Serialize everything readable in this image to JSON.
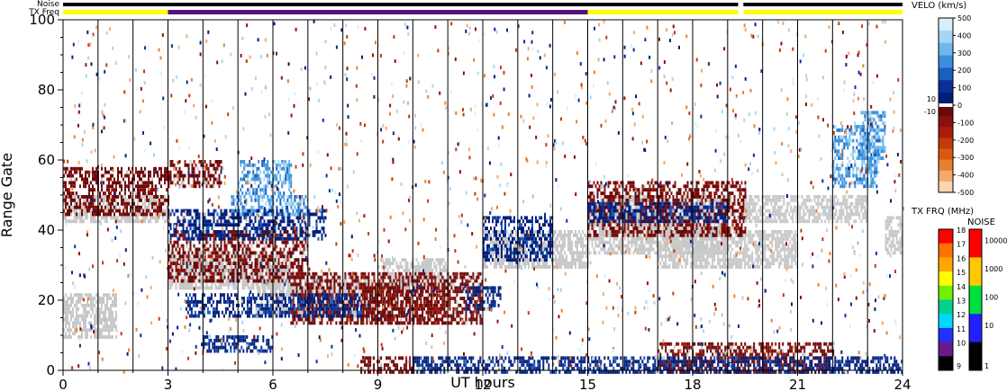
{
  "chart_data": {
    "type": "heatmap",
    "xlabel": "UT hours",
    "ylabel": "Range Gate",
    "xlim": [
      0,
      24
    ],
    "ylim": [
      0,
      100
    ],
    "x_ticks": [
      "0",
      "3",
      "6",
      "9",
      "12",
      "15",
      "18",
      "21",
      "24"
    ],
    "y_ticks": [
      "0",
      "20",
      "40",
      "60",
      "80",
      "100"
    ],
    "grid": "vertical lines every 1 hour",
    "top_bars": {
      "noise_label": "Noise",
      "txfreq_label": "TX Freq",
      "noise_segments": [
        {
          "start": 0,
          "end": 19.3,
          "color": "#000000"
        },
        {
          "start": 19.45,
          "end": 24,
          "color": "#000000"
        }
      ],
      "txfreq_segments": [
        {
          "start": 0,
          "end": 3,
          "color": "#ffff00"
        },
        {
          "start": 3,
          "end": 15,
          "color": "#5a1278"
        },
        {
          "start": 15,
          "end": 19.3,
          "color": "#ffff00"
        },
        {
          "start": 19.45,
          "end": 24,
          "color": "#ffff00"
        }
      ]
    },
    "velocity_colorbar": {
      "title": "VELO (km/s)",
      "ticks": [
        "500",
        "400",
        "300",
        "200",
        "100",
        "0",
        "-100",
        "-200",
        "-300",
        "-400",
        "-500"
      ],
      "small_ticks": [
        "10",
        "-10"
      ],
      "colors_positive": [
        "#d8eefc",
        "#a6d6f4",
        "#6eb8ec",
        "#3a8fdc",
        "#1a5fc0",
        "#0b2f98",
        "#041e78"
      ],
      "colors_negative": [
        "#6a0a0a",
        "#8c1010",
        "#a81c08",
        "#c43a08",
        "#d85a10",
        "#e88030",
        "#f4a86a",
        "#fcd6b0"
      ],
      "ground_scatter_color": "#c8c8c8"
    },
    "txfreq_colorbar": {
      "title": "TX FRQ (MHz)",
      "ticks": [
        "18",
        "17",
        "16",
        "15",
        "14",
        "13",
        "12",
        "11",
        "10",
        "9"
      ],
      "colors": [
        "#ff0000",
        "#ff7000",
        "#ffa800",
        "#ffff00",
        "#70f000",
        "#00d090",
        "#00d8ff",
        "#2030ff",
        "#6a1a8a",
        "#000000"
      ]
    },
    "noise_colorbar": {
      "title": "NOISE",
      "ticks": [
        "10000",
        "1000",
        "100",
        "10",
        "1"
      ],
      "colors": [
        "#ff0000",
        "#ffc800",
        "#00e040",
        "#2020ff",
        "#000000"
      ]
    },
    "regions": [
      {
        "kind": "ground",
        "x0": 0,
        "x1": 3,
        "y0": 42,
        "y1": 50
      },
      {
        "kind": "ground",
        "x0": 0,
        "x1": 1.5,
        "y0": 10,
        "y1": 22
      },
      {
        "kind": "ground",
        "x0": 3,
        "x1": 6.5,
        "y0": 24,
        "y1": 34
      },
      {
        "kind": "ground",
        "x0": 5.5,
        "x1": 9,
        "y0": 16,
        "y1": 26
      },
      {
        "kind": "ground",
        "x0": 9,
        "x1": 11,
        "y0": 24,
        "y1": 32
      },
      {
        "kind": "ground",
        "x0": 12,
        "x1": 15,
        "y0": 30,
        "y1": 40
      },
      {
        "kind": "ground",
        "x0": 15,
        "x1": 19,
        "y0": 34,
        "y1": 50
      },
      {
        "kind": "ground",
        "x0": 17,
        "x1": 21,
        "y0": 30,
        "y1": 40
      },
      {
        "kind": "ground",
        "x0": 19.5,
        "x1": 23,
        "y0": 42,
        "y1": 50
      },
      {
        "kind": "ground",
        "x0": 23.5,
        "x1": 24,
        "y0": 34,
        "y1": 44
      },
      {
        "kind": "neg_dark",
        "x0": 0,
        "x1": 3,
        "y0": 44,
        "y1": 58
      },
      {
        "kind": "neg_dark",
        "x0": 3,
        "x1": 7,
        "y0": 26,
        "y1": 40
      },
      {
        "kind": "neg_dark",
        "x0": 3,
        "x1": 4.5,
        "y0": 52,
        "y1": 60
      },
      {
        "kind": "neg_dark",
        "x0": 6.5,
        "x1": 12,
        "y0": 14,
        "y1": 28
      },
      {
        "kind": "neg_dark",
        "x0": 8.5,
        "x1": 11,
        "y0": 14,
        "y1": 24
      },
      {
        "kind": "neg_dark",
        "x0": 8.5,
        "x1": 10,
        "y0": 0,
        "y1": 4
      },
      {
        "kind": "neg_dark",
        "x0": 15,
        "x1": 19.5,
        "y0": 38,
        "y1": 54
      },
      {
        "kind": "neg_dark",
        "x0": 17,
        "x1": 22,
        "y0": 0,
        "y1": 8
      },
      {
        "kind": "pos_dark",
        "x0": 3,
        "x1": 7.5,
        "y0": 38,
        "y1": 46
      },
      {
        "kind": "pos_dark",
        "x0": 3.5,
        "x1": 8.5,
        "y0": 16,
        "y1": 22
      },
      {
        "kind": "pos_dark",
        "x0": 4,
        "x1": 6,
        "y0": 6,
        "y1": 10
      },
      {
        "kind": "pos_dark",
        "x0": 11.5,
        "x1": 12.5,
        "y0": 18,
        "y1": 24
      },
      {
        "kind": "pos_dark",
        "x0": 12,
        "x1": 14,
        "y0": 32,
        "y1": 44
      },
      {
        "kind": "pos_dark",
        "x0": 10,
        "x1": 24,
        "y0": 0,
        "y1": 4
      },
      {
        "kind": "pos_dark",
        "x0": 15,
        "x1": 19,
        "y0": 42,
        "y1": 48
      },
      {
        "kind": "pos_light",
        "x0": 5,
        "x1": 6.5,
        "y0": 50,
        "y1": 60
      },
      {
        "kind": "pos_light",
        "x0": 4.8,
        "x1": 7,
        "y0": 44,
        "y1": 50
      },
      {
        "kind": "pos_light",
        "x0": 22,
        "x1": 23.3,
        "y0": 52,
        "y1": 70
      },
      {
        "kind": "pos_light",
        "x0": 22.8,
        "x1": 23.5,
        "y0": 60,
        "y1": 74
      }
    ]
  }
}
